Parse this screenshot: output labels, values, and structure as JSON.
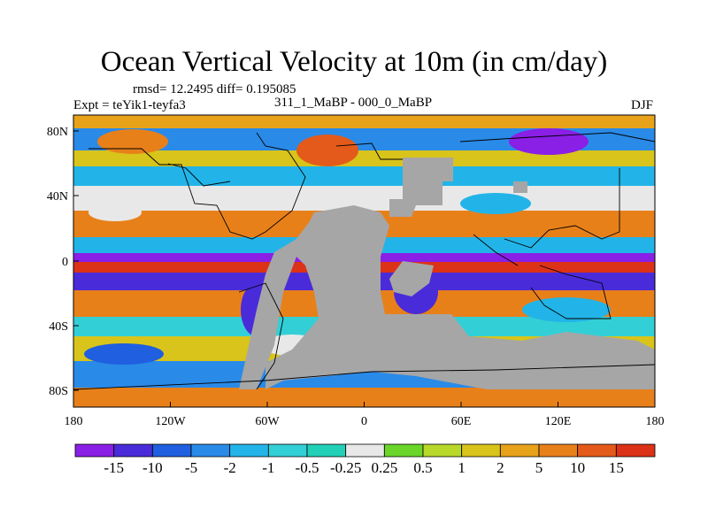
{
  "title": "Ocean Vertical Velocity at 10m (in cm/day)",
  "stats": "rmsd= 12.2495 diff= 0.195085",
  "expt": "Expt = teYik1-teyfa3",
  "comparison": "311_1_MaBP - 000_0_MaBP",
  "season": "DJF",
  "lat_ticks": [
    "80N",
    "40N",
    "0",
    "40S",
    "80S"
  ],
  "lon_ticks": [
    "180",
    "120W",
    "60W",
    "0",
    "60E",
    "120E",
    "180"
  ],
  "colorbar": {
    "labels": [
      "-15",
      "-10",
      "-5",
      "-2",
      "-1",
      "-0.5",
      "-0.25",
      "0.25",
      "0.5",
      "1",
      "2",
      "5",
      "10",
      "15"
    ],
    "colors": [
      "#8a1fe6",
      "#4a2bd9",
      "#1f5fe0",
      "#2a8ae8",
      "#22b4e8",
      "#33cfd6",
      "#22d0b8",
      "#e8e8e8",
      "#6ad62a",
      "#b8d82a",
      "#d8c41a",
      "#e8a21a",
      "#e8801a",
      "#e45a1a",
      "#dc3218"
    ]
  },
  "colors": {
    "land": "#a6a6a6",
    "coast": "#000000"
  }
}
